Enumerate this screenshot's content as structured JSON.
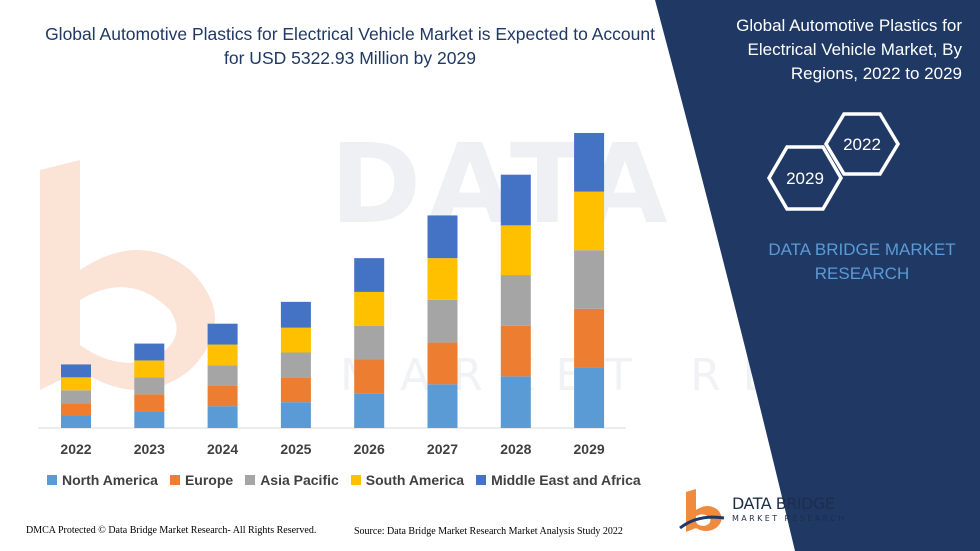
{
  "chart_title": "Global Automotive Plastics for Electrical Vehicle Market is Expected to Account for USD 5322.93 Million by 2029",
  "panel": {
    "title": "Global Automotive Plastics for Electrical Vehicle Market, By Regions, 2022 to 2029",
    "hex_years": [
      "2022",
      "2029"
    ],
    "brand_text": "DATA BRIDGE MARKET RESEARCH",
    "panel_color": "#1f3864"
  },
  "watermark": {
    "line1": "DATA BRIDGE",
    "line2": "MARKET RESEARCH"
  },
  "logo": {
    "name": "DATA BRIDGE",
    "sub": "MARKET RESEARCH",
    "icon": "data-bridge-b-logo-icon"
  },
  "footer": {
    "left": "DMCA Protected © Data Bridge Market Research- All Rights Reserved.",
    "right": "Source: Data Bridge Market Research Market Analysis Study 2022"
  },
  "chart_data": {
    "type": "bar",
    "stacked": true,
    "categories": [
      "2022",
      "2023",
      "2024",
      "2025",
      "2026",
      "2027",
      "2028",
      "2029"
    ],
    "series": [
      {
        "name": "North America",
        "color": "#5b9bd5",
        "values": [
          13,
          17,
          22,
          26,
          35,
          44,
          52,
          61
        ]
      },
      {
        "name": "Europe",
        "color": "#ed7d31",
        "values": [
          12,
          17,
          21,
          25,
          34,
          42,
          51,
          59
        ]
      },
      {
        "name": "Asia Pacific",
        "color": "#a5a5a5",
        "values": [
          13,
          17,
          20,
          25,
          34,
          43,
          51,
          59
        ]
      },
      {
        "name": "South America",
        "color": "#ffc000",
        "values": [
          13,
          17,
          21,
          25,
          34,
          42,
          50,
          59
        ]
      },
      {
        "name": "Middle East and Africa",
        "color": "#4472c4",
        "values": [
          13,
          17,
          21,
          26,
          34,
          43,
          51,
          59
        ]
      }
    ],
    "ylim": [
      0,
      300
    ],
    "grid": false,
    "legend_position": "bottom"
  }
}
